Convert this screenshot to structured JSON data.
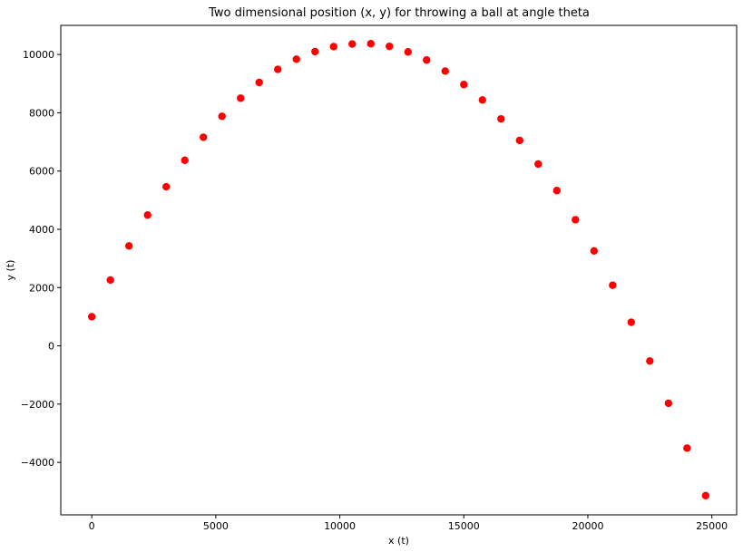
{
  "chart_data": {
    "type": "scatter",
    "title": "Two dimensional position (x, y) for throwing a ball at angle theta",
    "xlabel": "x (t)",
    "ylabel": "y (t)",
    "xlim": [
      -1250,
      26000
    ],
    "ylim": [
      -5800,
      11000
    ],
    "xticks": [
      0,
      5000,
      10000,
      15000,
      20000,
      25000
    ],
    "yticks": [
      -4000,
      -2000,
      0,
      2000,
      4000,
      6000,
      8000,
      10000
    ],
    "grid": false,
    "legend": "none",
    "marker_color": "#ff0000",
    "series": [
      {
        "x": [
          0,
          750,
          1500,
          2250,
          3000,
          3750,
          4500,
          5250,
          6000,
          6750,
          7500,
          8250,
          9000,
          9750,
          10500,
          11250,
          12000,
          12750,
          13500,
          14250,
          15000,
          15750,
          16500,
          17250,
          18000,
          18750,
          19500,
          20250,
          21000,
          21750,
          22500,
          23250,
          24000,
          24750
        ],
        "y": [
          1000,
          2260,
          3430,
          4490,
          5460,
          6370,
          7160,
          7880,
          8500,
          9040,
          9490,
          9840,
          10100,
          10270,
          10360,
          10370,
          10280,
          10090,
          9810,
          9430,
          8970,
          8440,
          7790,
          7050,
          6240,
          5330,
          4330,
          3260,
          2080,
          810,
          -520,
          -1970,
          -3510,
          -5140
        ]
      }
    ]
  }
}
